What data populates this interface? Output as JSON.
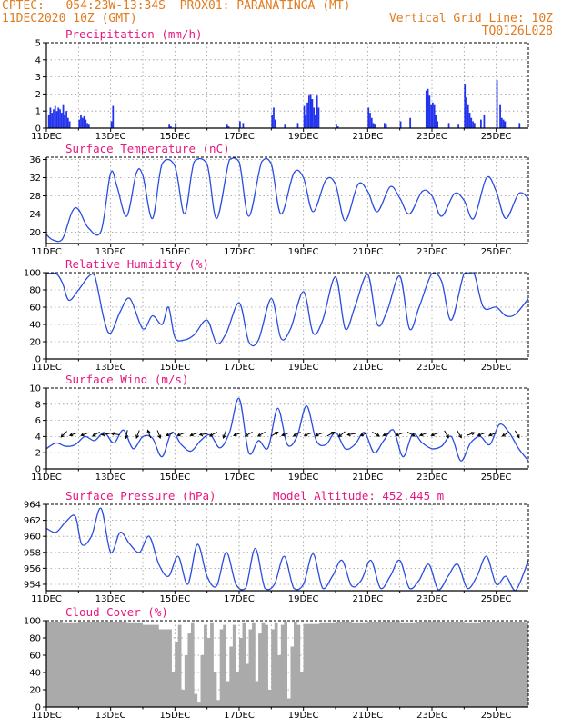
{
  "header": {
    "line1_left": "CPTEC:   054:23W-13:34S  PROX01: PARANATINGA (MT)",
    "line2_left": "11DEC2020 10Z (GMT)",
    "line2_right": "Vertical Grid Line: 10Z",
    "line3_right": "TQ0126L028"
  },
  "x_tick_labels": [
    "11DEC",
    "13DEC",
    "15DEC",
    "17DEC",
    "19DEC",
    "21DEC",
    "23DEC",
    "25DEC"
  ],
  "x_tick_days": [
    0,
    2,
    4,
    6,
    8,
    10,
    12,
    14
  ],
  "x_range_days": [
    0,
    15
  ],
  "chart_data": [
    {
      "type": "bar",
      "title": "Precipitation (mm/h)",
      "color": "#2233ee",
      "ylim": [
        0,
        5
      ],
      "yticks": [
        "0",
        "1",
        "2",
        "3",
        "4",
        "5"
      ],
      "yticks_values": [
        0,
        1,
        2,
        3,
        4,
        5
      ],
      "grid": true,
      "x_days": [
        0.05,
        0.1,
        0.15,
        0.2,
        0.25,
        0.3,
        0.35,
        0.4,
        0.45,
        0.5,
        0.55,
        0.6,
        0.65,
        0.7,
        1.0,
        1.05,
        1.1,
        1.15,
        1.2,
        1.25,
        1.3,
        2.0,
        2.05,
        3.8,
        3.85,
        4.0,
        5.6,
        5.65,
        6.0,
        6.1,
        7.0,
        7.05,
        7.1,
        7.4,
        7.8,
        8.0,
        8.05,
        8.1,
        8.15,
        8.2,
        8.25,
        8.3,
        8.35,
        8.4,
        8.45,
        9.0,
        9.05,
        10.0,
        10.05,
        10.1,
        10.15,
        10.2,
        10.5,
        10.55,
        11.0,
        11.3,
        11.8,
        11.85,
        11.9,
        11.95,
        12.0,
        12.05,
        12.1,
        12.15,
        12.5,
        12.8,
        13.0,
        13.05,
        13.1,
        13.15,
        13.2,
        13.25,
        13.3,
        13.5,
        13.6,
        14.0,
        14.1,
        14.15,
        14.2,
        14.25,
        14.7
      ],
      "values": [
        0.8,
        1.2,
        0.9,
        1.1,
        1.3,
        1.0,
        1.2,
        1.1,
        0.9,
        1.4,
        0.8,
        1.0,
        0.6,
        0.4,
        0.5,
        0.8,
        0.6,
        0.7,
        0.5,
        0.3,
        0.2,
        0.4,
        1.3,
        0.2,
        0.1,
        0.3,
        0.2,
        0.1,
        0.4,
        0.3,
        0.8,
        1.2,
        0.5,
        0.2,
        0.3,
        1.3,
        0.8,
        1.5,
        1.9,
        2.0,
        1.7,
        1.2,
        0.8,
        1.9,
        1.2,
        0.2,
        0.1,
        1.2,
        0.9,
        0.6,
        0.3,
        0.2,
        0.3,
        0.2,
        0.4,
        0.6,
        2.2,
        2.3,
        1.9,
        1.4,
        1.5,
        1.4,
        0.8,
        0.4,
        0.3,
        0.2,
        2.6,
        1.8,
        1.4,
        0.9,
        0.6,
        0.4,
        0.3,
        0.5,
        0.8,
        2.8,
        1.4,
        0.6,
        0.5,
        0.4,
        0.3
      ]
    },
    {
      "type": "line",
      "title": "Surface Temperature (nC)",
      "color": "#2a4de0",
      "ylim": [
        17.5,
        36.5
      ],
      "yticks": [
        "20",
        "24",
        "28",
        "32",
        "36"
      ],
      "yticks_values": [
        20,
        24,
        28,
        32,
        36
      ],
      "grid": true,
      "x_days": [
        0,
        0.2,
        0.5,
        0.8,
        1.0,
        1.3,
        1.7,
        2.0,
        2.2,
        2.5,
        2.8,
        3.0,
        3.3,
        3.6,
        4.0,
        4.3,
        4.6,
        5.0,
        5.3,
        5.7,
        6.0,
        6.3,
        6.7,
        7.0,
        7.3,
        7.7,
        8.0,
        8.3,
        8.7,
        9.0,
        9.3,
        9.7,
        10.0,
        10.3,
        10.7,
        11.0,
        11.3,
        11.7,
        12.0,
        12.3,
        12.7,
        13.0,
        13.3,
        13.7,
        14.0,
        14.3,
        14.7,
        15.0
      ],
      "values": [
        19.5,
        18.3,
        18.5,
        24.5,
        25.0,
        21.0,
        20.2,
        33.0,
        30.0,
        23.5,
        33.0,
        32.5,
        23.0,
        35.0,
        34.5,
        24.0,
        35.5,
        35.0,
        23.0,
        36.0,
        35.5,
        23.5,
        35.5,
        35.0,
        24.0,
        33.0,
        32.0,
        24.5,
        31.5,
        30.5,
        22.5,
        30.5,
        29.0,
        24.5,
        30.0,
        27.5,
        24.0,
        29.0,
        28.0,
        23.5,
        28.5,
        27.0,
        23.0,
        32.0,
        29.0,
        23.0,
        28.5,
        27.5
      ]
    },
    {
      "type": "line",
      "title": "Relative Humidity (%)",
      "color": "#2a4de0",
      "ylim": [
        0,
        100
      ],
      "yticks": [
        "0",
        "20",
        "40",
        "60",
        "80",
        "100"
      ],
      "yticks_values": [
        0,
        20,
        40,
        60,
        80,
        100
      ],
      "grid": true,
      "x_days": [
        0,
        0.3,
        0.5,
        0.7,
        1.0,
        1.3,
        1.5,
        1.8,
        2.0,
        2.3,
        2.6,
        3.0,
        3.3,
        3.6,
        3.8,
        4.0,
        4.3,
        4.6,
        5.0,
        5.3,
        5.6,
        6.0,
        6.3,
        6.6,
        7.0,
        7.3,
        7.6,
        8.0,
        8.3,
        8.6,
        9.0,
        9.3,
        9.6,
        10.0,
        10.3,
        10.6,
        11.0,
        11.3,
        11.6,
        12.0,
        12.3,
        12.6,
        13.0,
        13.3,
        13.6,
        14.0,
        14.3,
        14.6,
        15.0
      ],
      "values": [
        99,
        99,
        88,
        68,
        80,
        95,
        97,
        45,
        30,
        55,
        70,
        35,
        50,
        40,
        60,
        25,
        22,
        28,
        45,
        18,
        30,
        65,
        20,
        22,
        70,
        24,
        35,
        78,
        30,
        45,
        95,
        35,
        60,
        98,
        40,
        55,
        96,
        35,
        60,
        99,
        90,
        45,
        99,
        100,
        60,
        60,
        50,
        52,
        70
      ]
    },
    {
      "type": "line",
      "title": "Surface Wind (m/s)",
      "color": "#2a4de0",
      "ylim": [
        0,
        10
      ],
      "yticks": [
        "0",
        "2",
        "4",
        "6",
        "8",
        "10"
      ],
      "yticks_values": [
        0,
        2,
        4,
        6,
        8,
        10
      ],
      "grid": true,
      "x_days": [
        0,
        0.3,
        0.6,
        0.9,
        1.2,
        1.5,
        1.8,
        2.1,
        2.4,
        2.7,
        3.0,
        3.3,
        3.6,
        3.9,
        4.2,
        4.5,
        4.8,
        5.1,
        5.4,
        5.7,
        6.0,
        6.3,
        6.6,
        6.9,
        7.2,
        7.5,
        7.8,
        8.1,
        8.4,
        8.7,
        9.0,
        9.3,
        9.6,
        9.9,
        10.2,
        10.5,
        10.8,
        11.1,
        11.4,
        11.7,
        12.0,
        12.3,
        12.6,
        12.9,
        13.2,
        13.5,
        13.8,
        14.1,
        14.4,
        14.7,
        15.0
      ],
      "values": [
        2.5,
        3.2,
        2.8,
        3.0,
        4.0,
        3.5,
        4.5,
        3.2,
        4.8,
        2.5,
        4.0,
        3.8,
        1.5,
        4.5,
        3.0,
        2.2,
        3.5,
        4.2,
        2.6,
        4.5,
        8.7,
        2.0,
        3.5,
        2.6,
        7.5,
        3.0,
        4.0,
        7.8,
        3.5,
        3.0,
        4.5,
        2.5,
        3.0,
        4.5,
        2.0,
        3.5,
        4.8,
        1.5,
        4.3,
        3.2,
        2.5,
        2.8,
        4.0,
        1.0,
        3.2,
        4.0,
        3.0,
        5.5,
        4.5,
        2.5,
        1.0
      ],
      "arrows_x_days": [
        0.55,
        0.85,
        1.2,
        1.55,
        1.85,
        2.15,
        2.5,
        2.85,
        3.2,
        3.5,
        3.85,
        4.2,
        4.6,
        4.9,
        5.2,
        5.55,
        5.95,
        6.3,
        6.7,
        7.1,
        7.45,
        7.8,
        8.15,
        8.5,
        8.85,
        9.2,
        9.5,
        9.9,
        10.25,
        10.6,
        11.0,
        11.35,
        11.75,
        12.1,
        12.45,
        12.85,
        13.2,
        13.55,
        13.9,
        14.3,
        14.65
      ],
      "arrows_dir_deg": [
        225,
        200,
        200,
        210,
        190,
        170,
        260,
        250,
        110,
        290,
        200,
        200,
        200,
        190,
        210,
        250,
        200,
        210,
        210,
        30,
        200,
        210,
        200,
        200,
        30,
        220,
        190,
        200,
        330,
        200,
        200,
        330,
        200,
        200,
        300,
        300,
        20,
        200,
        200,
        210,
        300
      ]
    },
    {
      "type": "line",
      "title": "Surface Pressure (hPa)",
      "annotation": "Model Altitude: 452.445 m",
      "color": "#2a4de0",
      "ylim": [
        953.2,
        964
      ],
      "yticks": [
        "954",
        "956",
        "958",
        "960",
        "962",
        "964"
      ],
      "yticks_values": [
        954,
        956,
        958,
        960,
        962,
        964
      ],
      "grid": true,
      "x_days": [
        0,
        0.3,
        0.6,
        0.9,
        1.1,
        1.4,
        1.7,
        2.0,
        2.3,
        2.6,
        2.9,
        3.2,
        3.5,
        3.8,
        4.1,
        4.4,
        4.7,
        5.0,
        5.3,
        5.6,
        5.9,
        6.2,
        6.5,
        6.8,
        7.1,
        7.4,
        7.7,
        8.0,
        8.3,
        8.6,
        8.9,
        9.2,
        9.5,
        9.8,
        10.1,
        10.4,
        10.7,
        11.0,
        11.3,
        11.6,
        11.9,
        12.2,
        12.5,
        12.8,
        13.1,
        13.4,
        13.7,
        14.0,
        14.3,
        14.6,
        15.0
      ],
      "values": [
        961,
        960.5,
        961.8,
        962.5,
        959,
        960,
        963.5,
        958,
        960.5,
        959,
        958,
        960,
        956.5,
        955,
        957.5,
        954,
        959,
        955,
        953.8,
        958,
        954,
        953.5,
        958.5,
        953.5,
        954,
        957.5,
        953.5,
        954,
        957.8,
        953.5,
        955,
        957,
        953.8,
        954.5,
        957,
        953.5,
        955,
        957,
        953.5,
        954.5,
        956.5,
        953.3,
        955,
        956.5,
        953.5,
        955,
        957.5,
        954,
        955,
        953.2,
        957
      ]
    },
    {
      "type": "bar",
      "title": "Cloud Cover (%)",
      "color": "#aaaaaa",
      "ylim": [
        0,
        100
      ],
      "yticks": [
        "0",
        "20",
        "40",
        "60",
        "80",
        "100"
      ],
      "yticks_values": [
        0,
        20,
        40,
        60,
        80,
        100
      ],
      "grid": true,
      "x_days": [
        0,
        0.5,
        1.0,
        1.5,
        2.0,
        2.5,
        3.0,
        3.5,
        3.9,
        4.0,
        4.1,
        4.2,
        4.3,
        4.4,
        4.5,
        4.6,
        4.7,
        4.8,
        4.9,
        5.0,
        5.1,
        5.2,
        5.3,
        5.4,
        5.5,
        5.6,
        5.7,
        5.8,
        5.9,
        6.0,
        6.1,
        6.2,
        6.3,
        6.4,
        6.5,
        6.6,
        6.7,
        6.8,
        6.9,
        7.0,
        7.1,
        7.2,
        7.3,
        7.4,
        7.5,
        7.6,
        7.7,
        7.8,
        7.9,
        8.0,
        8.5,
        9.0,
        9.5,
        10.0,
        10.5,
        11.0,
        11.5,
        12.0,
        12.5,
        13.0,
        13.5,
        14.0,
        14.5,
        14.9
      ],
      "values": [
        98,
        97,
        99,
        98,
        99,
        97,
        95,
        90,
        40,
        75,
        95,
        20,
        60,
        85,
        97,
        15,
        5,
        60,
        95,
        80,
        97,
        40,
        8,
        90,
        95,
        30,
        70,
        95,
        40,
        80,
        97,
        50,
        90,
        97,
        30,
        85,
        97,
        95,
        20,
        90,
        97,
        60,
        95,
        98,
        10,
        70,
        98,
        95,
        40,
        96,
        97,
        98,
        97,
        98,
        99,
        97,
        98,
        99,
        98,
        97,
        98,
        99,
        98,
        97
      ]
    }
  ]
}
